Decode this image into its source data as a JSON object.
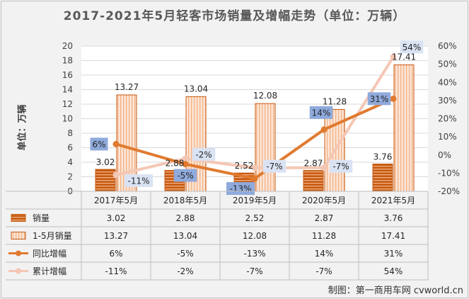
{
  "chart_data": {
    "type": "bar",
    "title": "2017-2021年5月轻客市场销量及增幅走势（单位：万辆）",
    "ylabel": "单位：万辆",
    "categories": [
      "2017年5月",
      "2018年5月",
      "2019年5月",
      "2020年5月",
      "2021年5月"
    ],
    "ylim": [
      0,
      20
    ],
    "y_ticks": [
      "0",
      "2",
      "4",
      "6",
      "8",
      "10",
      "12",
      "14",
      "16",
      "18",
      "20"
    ],
    "y2lim": [
      -20,
      60
    ],
    "y2_ticks": [
      "-20%",
      "-10%",
      "0%",
      "10%",
      "20%",
      "30%",
      "40%",
      "50%",
      "60%"
    ],
    "series": [
      {
        "name": "销量",
        "kind": "bar",
        "values": [
          3.02,
          2.88,
          2.52,
          2.87,
          3.76
        ],
        "labels": [
          "3.02",
          "2.88",
          "2.52",
          "2.87",
          "3.76"
        ]
      },
      {
        "name": "1-5月销量",
        "kind": "bar",
        "values": [
          13.27,
          13.04,
          12.08,
          11.28,
          17.41
        ],
        "labels": [
          "13.27",
          "13.04",
          "12.08",
          "11.28",
          "17.41"
        ]
      },
      {
        "name": "同比增幅",
        "kind": "line",
        "axis": "right",
        "values": [
          6,
          -5,
          -13,
          14,
          31
        ],
        "labels": [
          "6%",
          "-5%",
          "-13%",
          "14%",
          "31%"
        ]
      },
      {
        "name": "累计增幅",
        "kind": "line",
        "axis": "right",
        "values": [
          -11,
          -2,
          -7,
          -7,
          54
        ],
        "labels": [
          "-11%",
          "-2%",
          "-7%",
          "-7%",
          "54%"
        ]
      }
    ],
    "colors": {
      "bar1_fill": "#c55a11",
      "bar1_stripe": "#f4b183",
      "bar2_fill": "#fbe5d6",
      "bar2_stripe": "#f4b183",
      "bar2_edge": "#c55a11",
      "line1": "#e07a2f",
      "line2": "#f4c7b4",
      "badge1": "#8faadc",
      "badge2": "#dae3f3"
    }
  },
  "credit": "制图：第一商用车网 cvworld.cn"
}
